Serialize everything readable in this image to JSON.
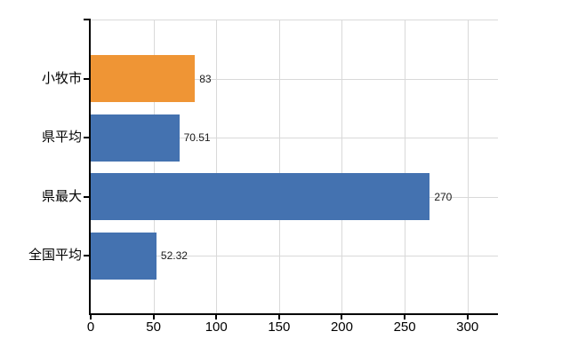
{
  "chart_data": {
    "type": "bar",
    "orientation": "horizontal",
    "title": "",
    "xlabel": "",
    "ylabel": "",
    "categories": [
      "小牧市",
      "県平均",
      "県最大",
      "全国平均"
    ],
    "values": [
      83,
      70.51,
      270,
      52.32
    ],
    "value_labels": [
      "83",
      "70.51",
      "270",
      "52.32"
    ],
    "bar_colors": [
      "#ef9535",
      "#4472b0",
      "#4472b0",
      "#4472b0"
    ],
    "xticks": [
      0,
      50,
      100,
      150,
      200,
      250,
      300
    ],
    "xlim": [
      0,
      324
    ],
    "grid": true,
    "legend": null,
    "colors": {
      "highlight_bar": "#ef9535",
      "default_bar": "#4472b0",
      "gridline": "#d9d9d9",
      "axis": "#000000",
      "text": "#000000",
      "background": "#ffffff"
    }
  }
}
